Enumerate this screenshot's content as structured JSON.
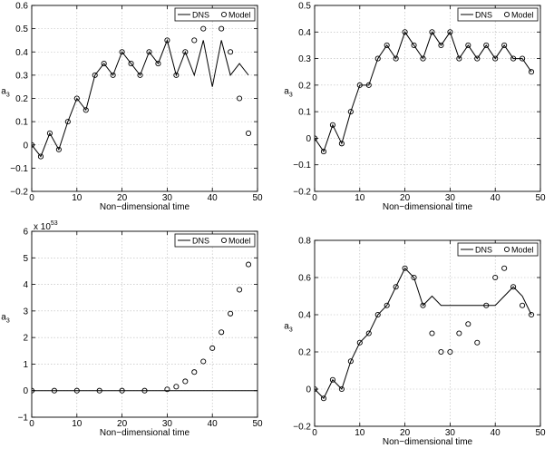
{
  "chart_data": [
    {
      "type": "line",
      "xlabel": "Non−dimensional time",
      "ylabel": "a",
      "ylabel_sub": "3",
      "xlim": [
        0,
        50
      ],
      "ylim": [
        -0.2,
        0.6
      ],
      "xticks": [
        0,
        10,
        20,
        30,
        40,
        50
      ],
      "yticks": [
        -0.2,
        -0.1,
        0,
        0.1,
        0.2,
        0.3,
        0.4,
        0.5,
        0.6
      ],
      "ytick_labels": [
        "−0.2",
        "−0.1",
        "0",
        "0.1",
        "0.2",
        "0.3",
        "0.4",
        "0.5",
        "0.6"
      ],
      "grid": true,
      "legend_position": "top-right",
      "series": [
        {
          "name": "DNS",
          "style": "solid line",
          "x": [
            0,
            2,
            4,
            6,
            8,
            10,
            12,
            14,
            16,
            18,
            20,
            22,
            24,
            26,
            28,
            30,
            32,
            34,
            36,
            38,
            40,
            42,
            44,
            46,
            48
          ],
          "y": [
            0.0,
            -0.05,
            0.05,
            -0.02,
            0.1,
            0.2,
            0.15,
            0.3,
            0.35,
            0.3,
            0.4,
            0.35,
            0.3,
            0.4,
            0.35,
            0.45,
            0.3,
            0.4,
            0.3,
            0.45,
            0.25,
            0.45,
            0.3,
            0.35,
            0.3
          ]
        },
        {
          "name": "Model",
          "style": "open circles",
          "x": [
            0,
            2,
            4,
            6,
            8,
            10,
            12,
            14,
            16,
            18,
            20,
            22,
            24,
            26,
            28,
            30,
            32,
            34,
            36,
            38,
            40,
            42,
            44,
            46,
            48
          ],
          "y": [
            0.0,
            -0.05,
            0.05,
            -0.02,
            0.1,
            0.2,
            0.15,
            0.3,
            0.35,
            0.3,
            0.4,
            0.35,
            0.3,
            0.4,
            0.35,
            0.45,
            0.3,
            0.4,
            0.45,
            0.5,
            0.55,
            0.5,
            0.4,
            0.2,
            0.05
          ]
        }
      ]
    },
    {
      "type": "line",
      "xlabel": "Non−dimensional time",
      "ylabel": "a",
      "ylabel_sub": "3",
      "xlim": [
        0,
        50
      ],
      "ylim": [
        -0.2,
        0.5
      ],
      "xticks": [
        0,
        10,
        20,
        30,
        40,
        50
      ],
      "yticks": [
        -0.2,
        -0.1,
        0,
        0.1,
        0.2,
        0.3,
        0.4,
        0.5
      ],
      "ytick_labels": [
        "−0.2",
        "−0.1",
        "0",
        "0.1",
        "0.2",
        "0.3",
        "0.4",
        "0.5"
      ],
      "grid": true,
      "legend_position": "top-right",
      "series": [
        {
          "name": "DNS",
          "style": "solid line",
          "x": [
            0,
            2,
            4,
            6,
            8,
            10,
            12,
            14,
            16,
            18,
            20,
            22,
            24,
            26,
            28,
            30,
            32,
            34,
            36,
            38,
            40,
            42,
            44,
            46,
            48
          ],
          "y": [
            0.0,
            -0.05,
            0.05,
            -0.02,
            0.1,
            0.2,
            0.2,
            0.3,
            0.35,
            0.3,
            0.4,
            0.35,
            0.3,
            0.4,
            0.35,
            0.4,
            0.3,
            0.35,
            0.3,
            0.35,
            0.3,
            0.35,
            0.3,
            0.3,
            0.25
          ]
        },
        {
          "name": "Model",
          "style": "open circles",
          "x": [
            0,
            2,
            4,
            6,
            8,
            10,
            12,
            14,
            16,
            18,
            20,
            22,
            24,
            26,
            28,
            30,
            32,
            34,
            36,
            38,
            40,
            42,
            44,
            46,
            48
          ],
          "y": [
            0.0,
            -0.05,
            0.05,
            -0.02,
            0.1,
            0.2,
            0.2,
            0.3,
            0.35,
            0.3,
            0.4,
            0.35,
            0.3,
            0.4,
            0.35,
            0.4,
            0.3,
            0.35,
            0.3,
            0.35,
            0.3,
            0.35,
            0.3,
            0.3,
            0.25
          ]
        }
      ]
    },
    {
      "type": "line",
      "xlabel": "Non−dimensional time",
      "ylabel": "a",
      "ylabel_sub": "3",
      "axis_multiplier": "x 10",
      "axis_multiplier_exp": "53",
      "xlim": [
        0,
        50
      ],
      "ylim": [
        -1,
        6
      ],
      "xticks": [
        0,
        10,
        20,
        30,
        40,
        50
      ],
      "yticks": [
        -1,
        0,
        1,
        2,
        3,
        4,
        5,
        6
      ],
      "ytick_labels": [
        "−1",
        "0",
        "1",
        "2",
        "3",
        "4",
        "5",
        "6"
      ],
      "grid": true,
      "legend_position": "top-right",
      "series": [
        {
          "name": "DNS",
          "style": "solid line",
          "x": [
            0,
            50
          ],
          "y": [
            0,
            0
          ]
        },
        {
          "name": "Model",
          "style": "open circles",
          "x": [
            0,
            5,
            10,
            15,
            20,
            25,
            30,
            32,
            34,
            36,
            38,
            40,
            42,
            44,
            46,
            48
          ],
          "y": [
            0,
            0,
            0,
            0,
            0,
            0,
            0.05,
            0.15,
            0.35,
            0.7,
            1.1,
            1.6,
            2.2,
            2.9,
            3.8,
            4.75
          ]
        }
      ]
    },
    {
      "type": "line",
      "xlabel": "Non−dimensional time",
      "ylabel": "a",
      "ylabel_sub": "3",
      "xlim": [
        0,
        50
      ],
      "ylim": [
        -0.2,
        0.8
      ],
      "xticks": [
        0,
        10,
        20,
        30,
        40,
        50
      ],
      "yticks": [
        -0.2,
        0,
        0.2,
        0.4,
        0.6,
        0.8
      ],
      "ytick_labels": [
        "−0.2",
        "0",
        "0.2",
        "0.4",
        "0.6",
        "0.8"
      ],
      "grid": true,
      "legend_position": "top-right",
      "series": [
        {
          "name": "DNS",
          "style": "solid line",
          "x": [
            0,
            2,
            4,
            6,
            8,
            10,
            12,
            14,
            16,
            18,
            20,
            22,
            24,
            26,
            28,
            30,
            32,
            34,
            36,
            38,
            40,
            42,
            44,
            46,
            48
          ],
          "y": [
            0.0,
            -0.05,
            0.05,
            0.0,
            0.15,
            0.25,
            0.3,
            0.4,
            0.45,
            0.55,
            0.65,
            0.6,
            0.45,
            0.5,
            0.45,
            0.45,
            0.45,
            0.45,
            0.45,
            0.45,
            0.45,
            0.5,
            0.55,
            0.5,
            0.4
          ]
        },
        {
          "name": "Model",
          "style": "open circles",
          "x": [
            0,
            2,
            4,
            6,
            8,
            10,
            12,
            14,
            16,
            18,
            20,
            22,
            24,
            26,
            28,
            30,
            32,
            34,
            36,
            38,
            40,
            42,
            44,
            46,
            48
          ],
          "y": [
            0.0,
            -0.05,
            0.05,
            0.0,
            0.15,
            0.25,
            0.3,
            0.4,
            0.45,
            0.55,
            0.65,
            0.6,
            0.45,
            0.3,
            0.2,
            0.2,
            0.3,
            0.35,
            0.25,
            0.45,
            0.6,
            0.65,
            0.55,
            0.45,
            0.4
          ]
        }
      ]
    }
  ]
}
